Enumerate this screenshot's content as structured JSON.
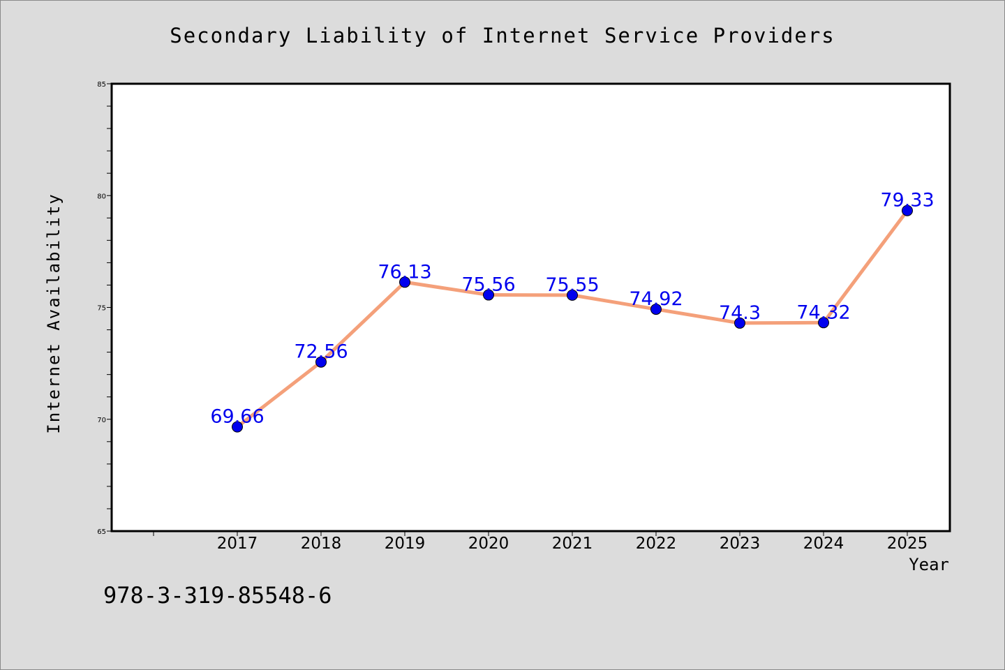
{
  "chart_data": {
    "type": "line",
    "title": "Secondary Liability of Internet Service Providers",
    "xlabel": "Year",
    "ylabel": "Internet Availability",
    "categories": [
      "2017",
      "2018",
      "2019",
      "2020",
      "2021",
      "2022",
      "2023",
      "2024",
      "2025"
    ],
    "series": [
      {
        "values": [
          69.66,
          72.56,
          76.13,
          75.56,
          75.55,
          74.92,
          74.3,
          74.32,
          79.33
        ],
        "data_labels": [
          "69.66",
          "72.56",
          "76.13",
          "75.56",
          "75.55",
          "74.92",
          "74.3",
          "74.32",
          "79.33"
        ],
        "line_color": "#f4a07a",
        "marker_color": "#0000ee",
        "label_color": "#0000ee"
      }
    ],
    "ylim": [
      65,
      85
    ],
    "yticks": [
      "65",
      "70",
      "75",
      "80",
      "85"
    ],
    "grid": false,
    "legend": "none"
  },
  "footer": {
    "text": "978-3-319-85548-6"
  }
}
